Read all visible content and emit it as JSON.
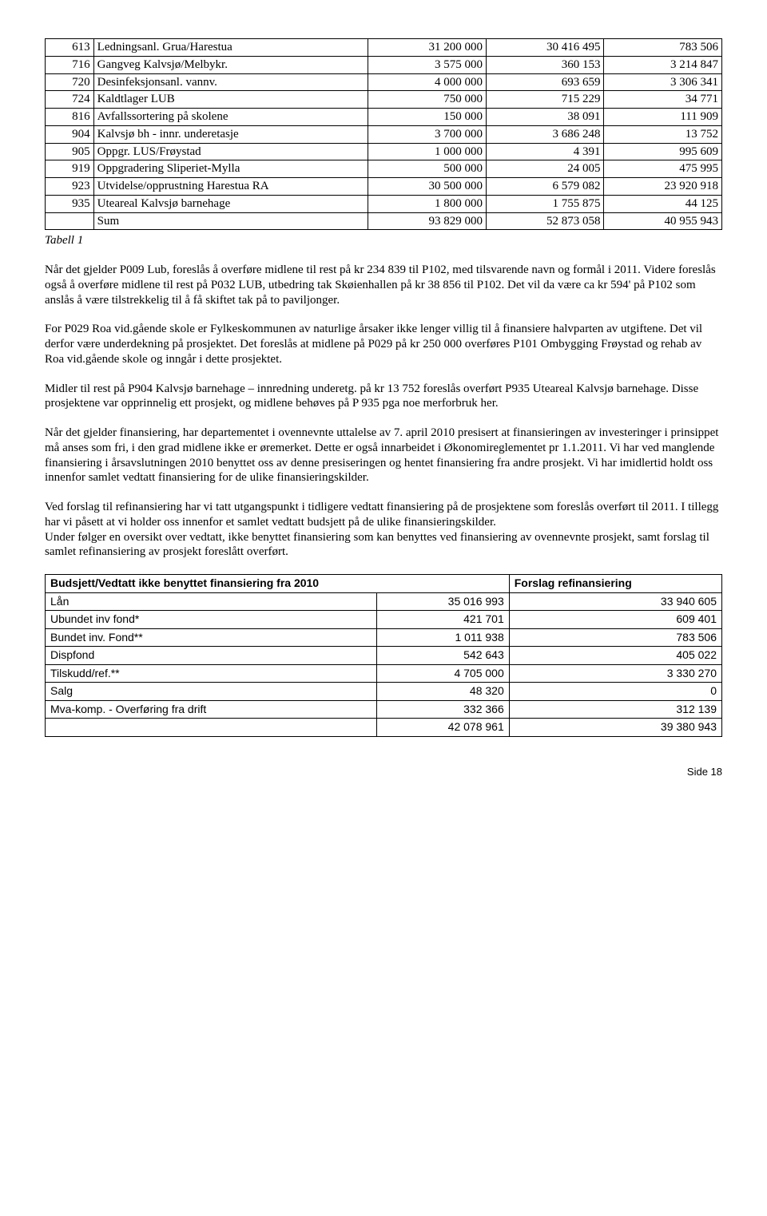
{
  "table1": {
    "rows": [
      {
        "code": "613",
        "desc": "Ledningsanl. Grua/Harestua",
        "c1": "31 200 000",
        "c2": "30 416 495",
        "c3": "783 506"
      },
      {
        "code": "716",
        "desc": "Gangveg Kalvsjø/Melbykr.",
        "c1": "3 575 000",
        "c2": "360 153",
        "c3": "3 214 847"
      },
      {
        "code": "720",
        "desc": "Desinfeksjonsanl. vannv.",
        "c1": "4 000 000",
        "c2": "693 659",
        "c3": "3 306 341"
      },
      {
        "code": "724",
        "desc": "Kaldtlager LUB",
        "c1": "750 000",
        "c2": "715 229",
        "c3": "34 771"
      },
      {
        "code": "816",
        "desc": "Avfallssortering på skolene",
        "c1": "150 000",
        "c2": "38 091",
        "c3": "111 909"
      },
      {
        "code": "904",
        "desc": "Kalvsjø bh - innr. underetasje",
        "c1": "3 700 000",
        "c2": "3 686 248",
        "c3": "13 752"
      },
      {
        "code": "905",
        "desc": "Oppgr. LUS/Frøystad",
        "c1": "1 000 000",
        "c2": "4 391",
        "c3": "995 609"
      },
      {
        "code": "919",
        "desc": "Oppgradering Sliperiet-Mylla",
        "c1": "500 000",
        "c2": "24 005",
        "c3": "475 995"
      },
      {
        "code": "923",
        "desc": "Utvidelse/opprustning Harestua RA",
        "c1": "30 500 000",
        "c2": "6 579 082",
        "c3": "23 920 918"
      },
      {
        "code": "935",
        "desc": "Uteareal Kalvsjø barnehage",
        "c1": "1 800 000",
        "c2": "1 755 875",
        "c3": "44 125"
      }
    ],
    "sum": {
      "label": "Sum",
      "c1": "93 829 000",
      "c2": "52 873 058",
      "c3": "40 955 943"
    },
    "caption": "Tabell 1"
  },
  "paragraphs": [
    "Når det gjelder P009 Lub, foreslås å overføre midlene til rest på kr 234 839 til P102, med tilsvarende navn og formål i 2011. Videre foreslås også å overføre midlene til rest på P032 LUB, utbedring tak Skøienhallen på kr 38 856 til P102. Det vil da være ca kr 594' på P102 som anslås å være tilstrekkelig til å få skiftet tak på to paviljonger.",
    "For P029 Roa vid.gående skole er Fylkeskommunen av naturlige årsaker ikke lenger villig til å finansiere halvparten av utgiftene. Det vil derfor være underdekning på prosjektet. Det foreslås at midlene på P029 på kr 250 000 overføres P101 Ombygging Frøystad og rehab av Roa vid.gående skole og inngår i dette prosjektet.",
    "Midler til rest på P904 Kalvsjø barnehage – innredning underetg. på kr 13 752 foreslås overført P935 Uteareal Kalvsjø barnehage. Disse prosjektene var opprinnelig ett prosjekt, og midlene behøves på P 935 pga noe merforbruk her.",
    "Når det gjelder finansiering, har departementet i ovennevnte uttalelse av 7. april 2010 presisert at finansieringen av investeringer i prinsippet må anses som fri, i den grad midlene ikke er øremerket. Dette er også innarbeidet i Økonomireglementet pr 1.1.2011. Vi har ved manglende finansiering i årsavslutningen 2010 benyttet oss av denne presiseringen og hentet finansiering fra andre prosjekt. Vi har imidlertid holdt oss innenfor samlet vedtatt finansiering for de ulike finansieringskilder.",
    "Ved forslag til refinansiering har vi tatt utgangspunkt i tidligere vedtatt finansiering på de prosjektene som foreslås overført til 2011. I tillegg har vi påsett at vi holder oss innenfor et samlet vedtatt budsjett på de ulike finansieringskilder.",
    "Under følger en oversikt over vedtatt, ikke benyttet finansiering som kan benyttes ved finansiering av ovennevnte prosjekt, samt forslag til samlet refinansiering av prosjekt foreslått overført."
  ],
  "table2": {
    "header_left": "Budsjett/Vedtatt ikke benyttet finansiering fra 2010",
    "header_right": "Forslag refinansiering",
    "rows": [
      {
        "label": "Lån",
        "c1": "35 016 993",
        "c2": "33 940 605"
      },
      {
        "label": "Ubundet inv fond*",
        "c1": "421 701",
        "c2": "609 401"
      },
      {
        "label": "Bundet inv. Fond**",
        "c1": "1 011 938",
        "c2": "783 506"
      },
      {
        "label": "Dispfond",
        "c1": "542 643",
        "c2": "405 022"
      },
      {
        "label": "Tilskudd/ref.**",
        "c1": "4 705 000",
        "c2": "3 330 270"
      },
      {
        "label": "Salg",
        "c1": "48 320",
        "c2": "0"
      },
      {
        "label": "Mva-komp. - Overføring  fra drift",
        "c1": "332 366",
        "c2": "312 139"
      }
    ],
    "total": {
      "c1": "42 078 961",
      "c2": "39 380 943"
    }
  },
  "footer": "Side 18"
}
